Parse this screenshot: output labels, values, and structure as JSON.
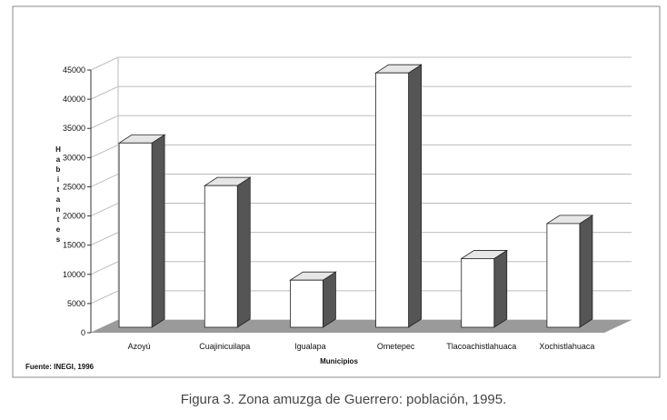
{
  "chart_data": {
    "type": "bar",
    "categories": [
      "Azoyú",
      "Cuajinicuilapa",
      "Igualapa",
      "Ometepec",
      "Tlacoachistlahuaca",
      "Xochistlahuaca"
    ],
    "values": [
      32500,
      25200,
      9000,
      44500,
      12700,
      18700
    ],
    "xlabel": "Municipios",
    "ylabel": "Habitantes",
    "ylim": [
      0,
      45000
    ],
    "yticks": [
      0,
      5000,
      10000,
      15000,
      20000,
      25000,
      30000,
      35000,
      40000,
      45000
    ],
    "grid": true,
    "style": "3d-column"
  },
  "source": "Fuente: INEGI, 1996",
  "caption": "Figura 3. Zona amuzga de Guerrero: población, 1995.",
  "colors": {
    "bar_front": "#ffffff",
    "bar_top": "#e6e6e6",
    "bar_side": "#555555",
    "floor": "#9a9a9a",
    "grid": "#bdbdbd"
  }
}
